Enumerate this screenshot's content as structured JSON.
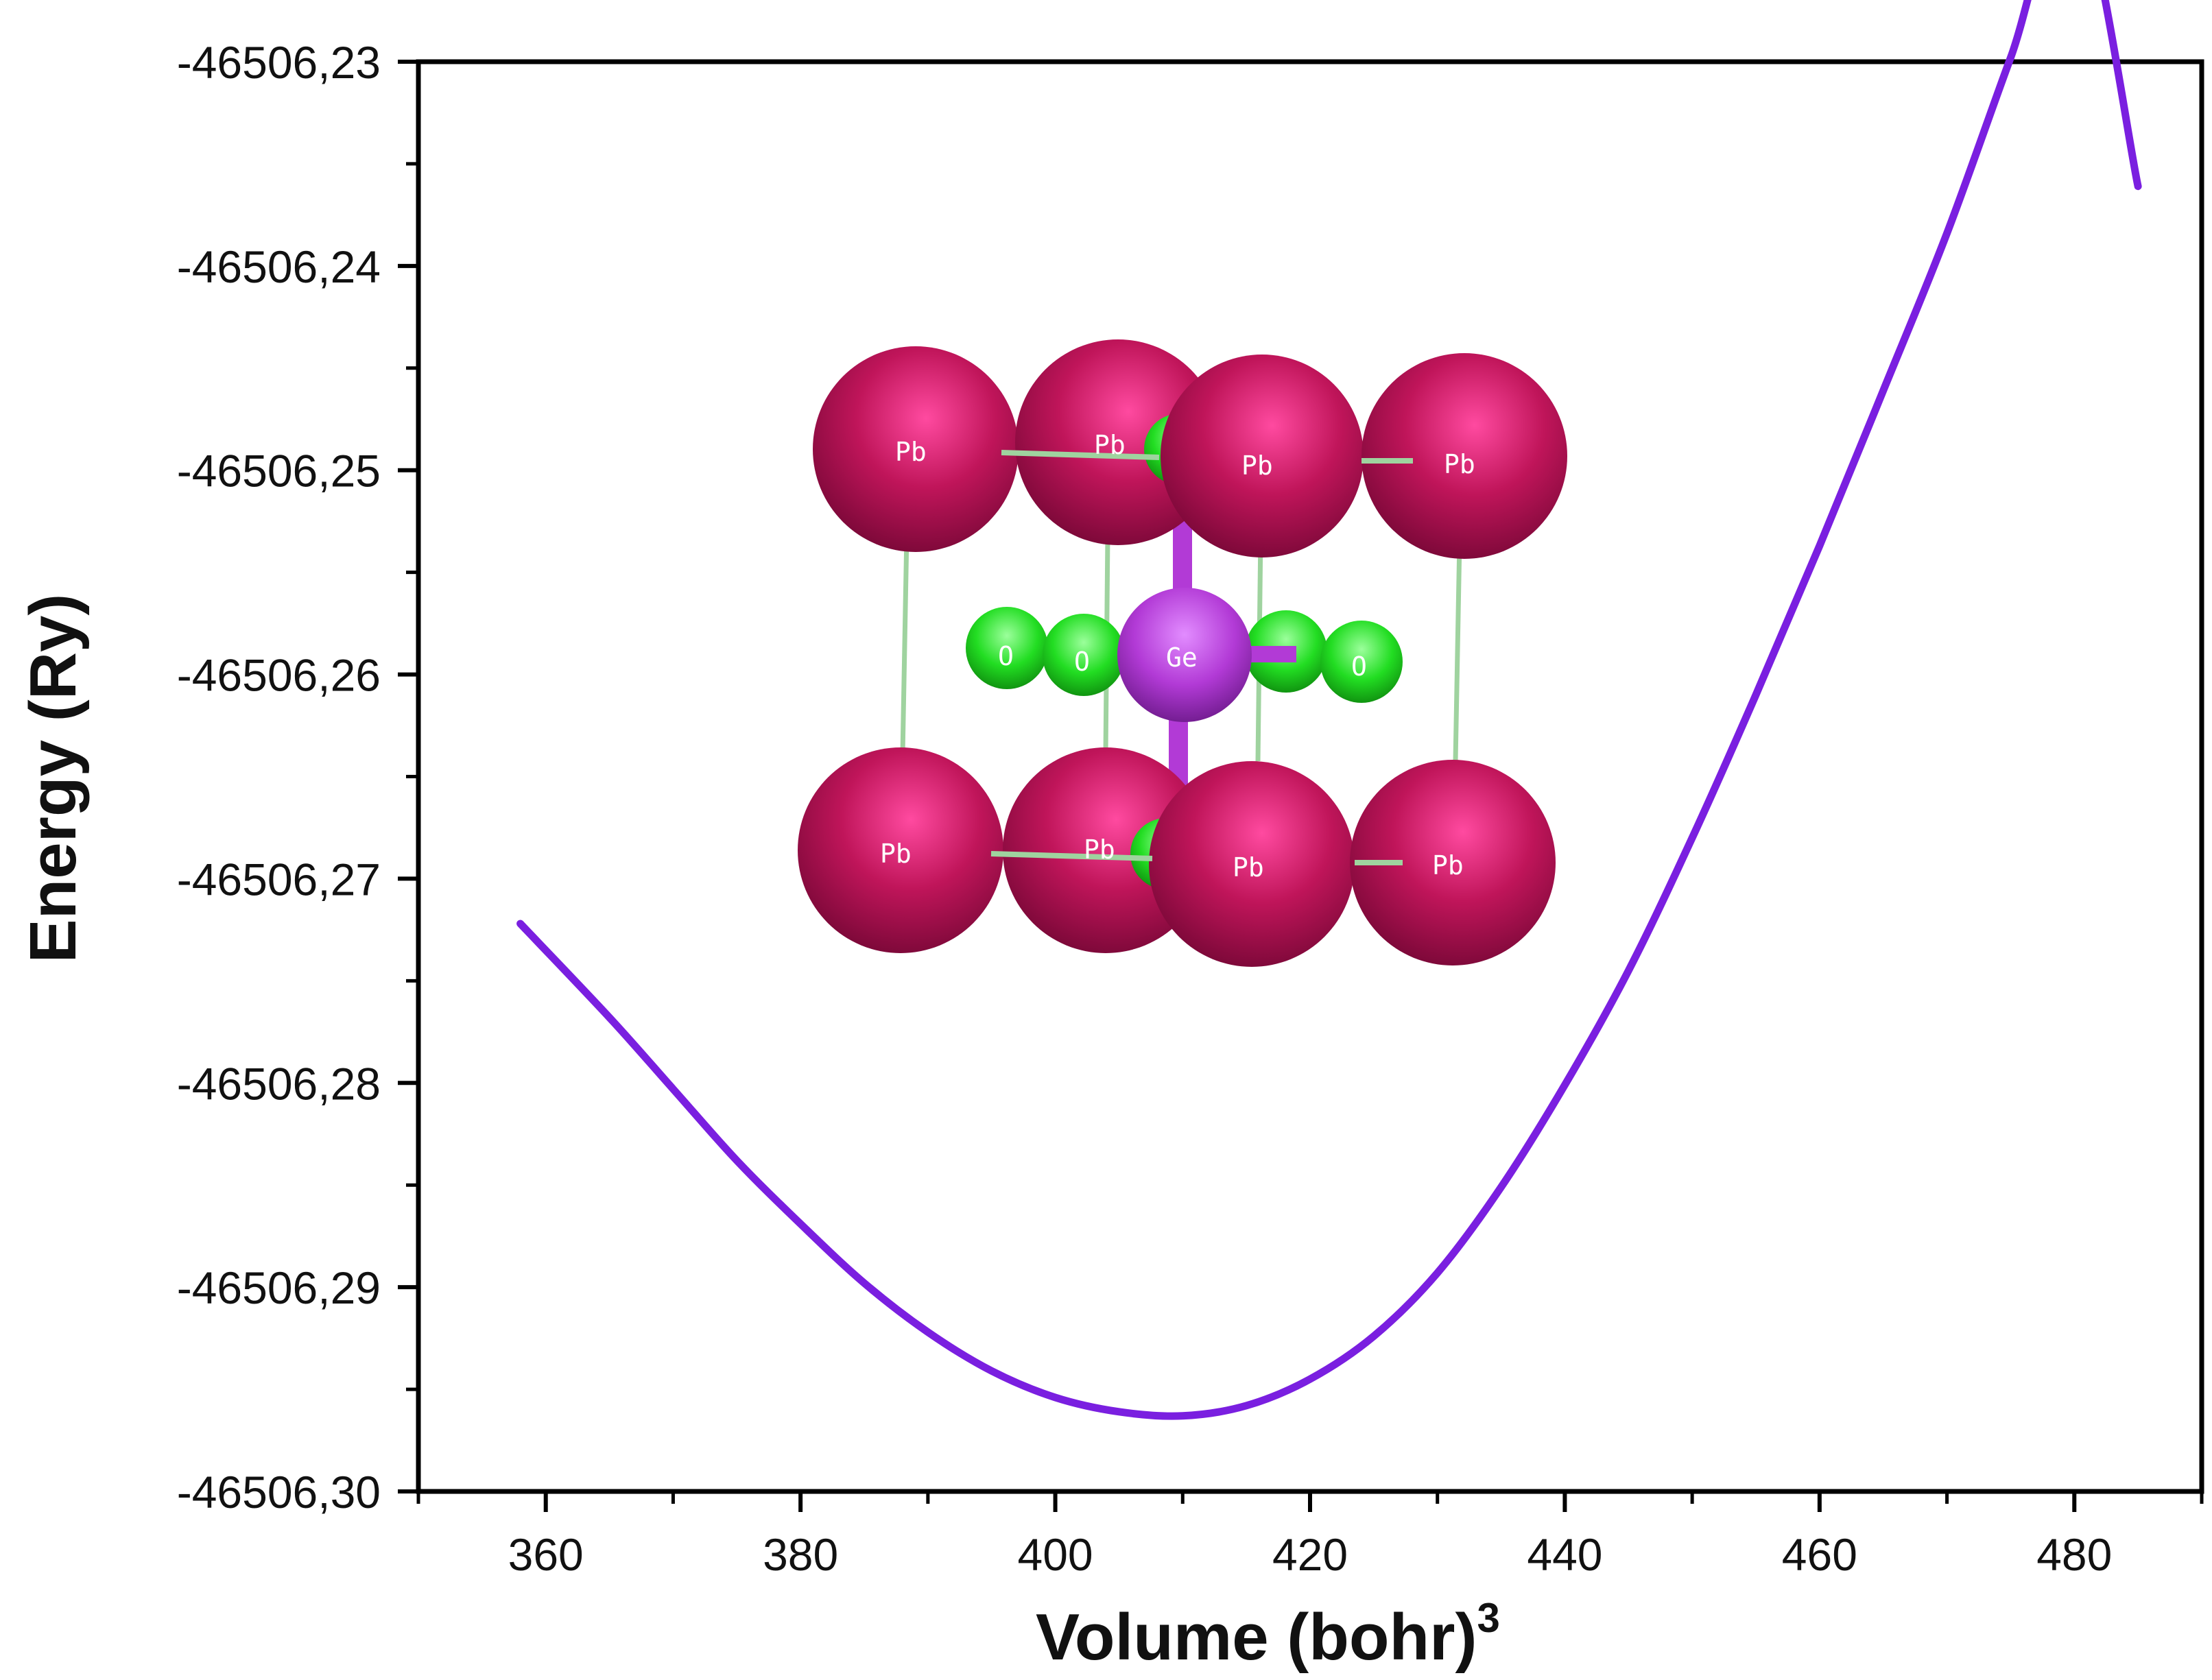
{
  "chart_data": {
    "type": "line",
    "xlabel": "Volume (bohr)",
    "xlabel_sup": "3",
    "ylabel": "Energy (Ry)",
    "xlim": [
      350,
      490
    ],
    "ylim": [
      -46506.3,
      -46506.23
    ],
    "xticks": [
      360,
      380,
      400,
      420,
      440,
      460,
      480
    ],
    "xtick_labels": [
      "360",
      "380",
      "400",
      "420",
      "440",
      "460",
      "480"
    ],
    "yticks": [
      -46506.23,
      -46506.24,
      -46506.25,
      -46506.26,
      -46506.27,
      -46506.28,
      -46506.29,
      -46506.3
    ],
    "ytick_labels": [
      "-46506,23",
      "-46506,24",
      "-46506,25",
      "-46506,26",
      "-46506,27",
      "-46506,28",
      "-46506,29",
      "-46506,30"
    ],
    "grid": false,
    "series": [
      {
        "color": "#7a1fe0",
        "points": [
          [
            358,
            -46506.2722
          ],
          [
            365,
            -46506.2768
          ],
          [
            370,
            -46506.2803
          ],
          [
            375,
            -46506.2838
          ],
          [
            380,
            -46506.2869
          ],
          [
            385,
            -46506.2898
          ],
          [
            390,
            -46506.2922
          ],
          [
            395,
            -46506.2941
          ],
          [
            400,
            -46506.2954
          ],
          [
            405,
            -46506.2961
          ],
          [
            410,
            -46506.2963
          ],
          [
            415,
            -46506.2958
          ],
          [
            420,
            -46506.2945
          ],
          [
            425,
            -46506.2924
          ],
          [
            430,
            -46506.2893
          ],
          [
            435,
            -46506.2851
          ],
          [
            440,
            -46506.2801
          ],
          [
            445,
            -46506.2745
          ],
          [
            450,
            -46506.268
          ],
          [
            455,
            -46506.261
          ],
          [
            460,
            -46506.2537
          ],
          [
            465,
            -46506.2461
          ],
          [
            470,
            -46506.2384
          ],
          [
            475,
            -46506.2298
          ],
          [
            480,
            -46506.2215
          ],
          [
            485,
            -46506.2361
          ]
        ]
      }
    ]
  },
  "inset": {
    "atoms": {
      "pb_label": "Pb",
      "ge_label": "Ge",
      "o_label": "O"
    },
    "colors": {
      "pb": "#c0155a",
      "ge": "#b23ad6",
      "o": "#22dd22",
      "bond": "#9fd39f"
    }
  }
}
